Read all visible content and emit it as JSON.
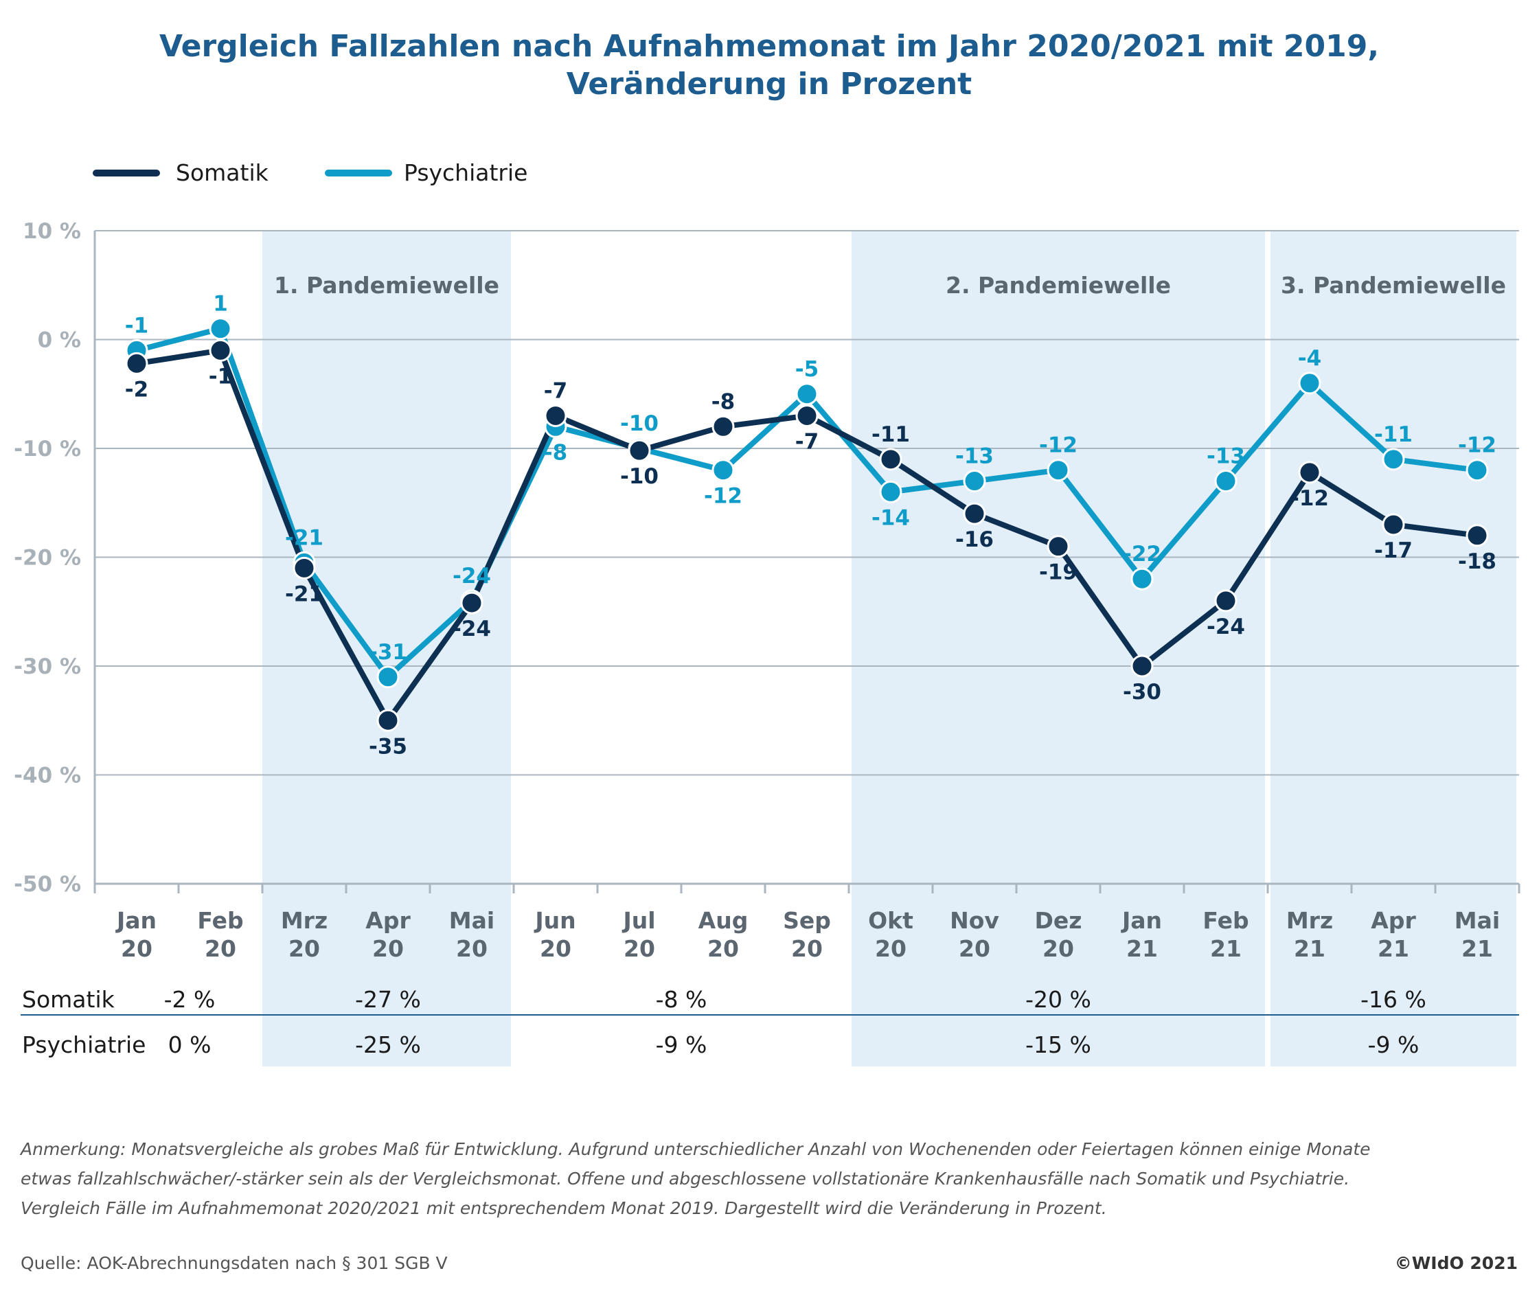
{
  "title_line1": "Vergleich Fallzahlen nach Aufnahmemonat im Jahr 2020/2021 mit 2019,",
  "title_line2": "Veränderung in Prozent",
  "colors": {
    "somatik": "#0d2f52",
    "psychiatrie": "#0f9cc8",
    "wave_band": "#e2eff8",
    "grid": "#aab6bf",
    "title": "#1d5c8f"
  },
  "chart_data": {
    "type": "line",
    "ylim": [
      -50,
      10
    ],
    "yticks": [
      10,
      0,
      -10,
      -20,
      -30,
      -40,
      -50
    ],
    "ytick_labels": [
      "10 %",
      "0 %",
      "-10 %",
      "-20 %",
      "-30 %",
      "-40 %",
      "-50 %"
    ],
    "categories": [
      {
        "month": "Jan",
        "year": "20"
      },
      {
        "month": "Feb",
        "year": "20"
      },
      {
        "month": "Mrz",
        "year": "20"
      },
      {
        "month": "Apr",
        "year": "20"
      },
      {
        "month": "Mai",
        "year": "20"
      },
      {
        "month": "Jun",
        "year": "20"
      },
      {
        "month": "Jul",
        "year": "20"
      },
      {
        "month": "Aug",
        "year": "20"
      },
      {
        "month": "Sep",
        "year": "20"
      },
      {
        "month": "Okt",
        "year": "20"
      },
      {
        "month": "Nov",
        "year": "20"
      },
      {
        "month": "Dez",
        "year": "20"
      },
      {
        "month": "Jan",
        "year": "21"
      },
      {
        "month": "Feb",
        "year": "21"
      },
      {
        "month": "Mrz",
        "year": "21"
      },
      {
        "month": "Apr",
        "year": "21"
      },
      {
        "month": "Mai",
        "year": "21"
      }
    ],
    "series": [
      {
        "name": "Somatik",
        "color": "#0d2f52",
        "values": [
          -2.2,
          -1,
          -21,
          -35,
          -24.2,
          -7,
          -10.2,
          -8,
          -7,
          -11,
          -16,
          -19,
          -30,
          -24,
          -12.2,
          -17,
          -18
        ],
        "labels": [
          "-2",
          "-1",
          "-21",
          "-35",
          "-24",
          "-7",
          "-10",
          "-8",
          "-7",
          "-11",
          "-16",
          "-19",
          "-30",
          "-24",
          "-12",
          "-17",
          "-18"
        ]
      },
      {
        "name": "Psychiatrie",
        "color": "#0f9cc8",
        "values": [
          -1,
          1,
          -20.5,
          -31,
          -24,
          -8,
          -10,
          -12,
          -5,
          -14,
          -13,
          -12,
          -22,
          -13,
          -4,
          -11,
          -12
        ],
        "labels": [
          "-1",
          "1",
          "-21",
          "-31",
          "-24",
          "-8",
          "-10",
          "-12",
          "-5",
          "-14",
          "-13",
          "-12",
          "-22",
          "-13",
          "-4",
          "-11",
          "-12"
        ]
      }
    ],
    "waves": [
      {
        "label": "1. Pandemiewelle",
        "from": 2,
        "to": 4
      },
      {
        "label": "2. Pandemiewelle",
        "from": 9,
        "to": 13
      },
      {
        "label": "3. Pandemiewelle",
        "from": 14,
        "to": 16
      }
    ],
    "legend": "top-left"
  },
  "summary_table": {
    "rows": [
      {
        "name": "Somatik",
        "cells": [
          "-2 %",
          "-27 %",
          "-8 %",
          "-20 %",
          "-16 %"
        ]
      },
      {
        "name": "Psychiatrie",
        "cells": [
          "0 %",
          "-25 %",
          "-9 %",
          "-15 %",
          "-9 %"
        ]
      }
    ]
  },
  "note": [
    "Anmerkung: Monatsvergleiche als grobes Maß für Entwicklung. Aufgrund unterschiedlicher Anzahl von Wochenenden oder Feiertagen können einige Monate",
    "etwas fallzahlschwächer/-stärker sein als der Vergleichsmonat. Offene und abgeschlossene vollstationäre Krankenhausfälle nach Somatik und Psychiatrie.",
    "Vergleich Fälle im Aufnahmemonat 2020/2021 mit entsprechendem Monat 2019. Dargestellt wird die Veränderung in Prozent."
  ],
  "source": "Quelle: AOK-Abrechnungsdaten nach § 301 SGB V",
  "copyright": "©WIdO 2021"
}
